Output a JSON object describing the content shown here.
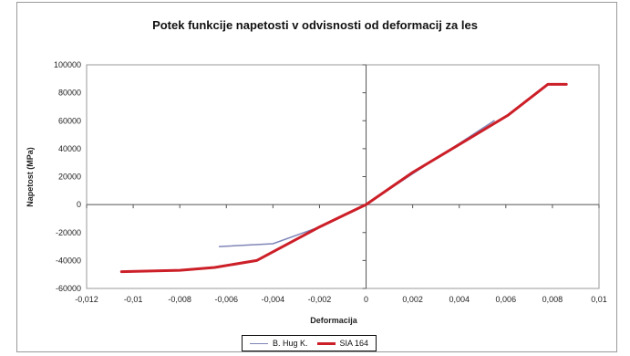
{
  "chart_data": {
    "type": "line",
    "title": "Potek funkcije napetosti v odvisnosti od deformacij za les",
    "xlabel": "Deformacija",
    "ylabel": "Napetost (MPa)",
    "xlim": [
      -0.012,
      0.01
    ],
    "ylim": [
      -60000,
      100000
    ],
    "x_ticks": [
      -0.012,
      -0.01,
      -0.008,
      -0.006,
      -0.004,
      -0.002,
      0,
      0.002,
      0.004,
      0.006,
      0.008,
      0.01
    ],
    "x_tick_labels": [
      "-0,012",
      "-0,01",
      "-0,008",
      "-0,006",
      "-0,004",
      "-0,002",
      "0",
      "0,002",
      "0,004",
      "0,006",
      "0,008",
      "0,01"
    ],
    "y_ticks": [
      -60000,
      -40000,
      -20000,
      0,
      20000,
      40000,
      60000,
      80000,
      100000
    ],
    "y_tick_labels": [
      "-60000",
      "-40000",
      "-20000",
      "0",
      "20000",
      "40000",
      "60000",
      "80000",
      "100000"
    ],
    "grid": false,
    "legend_position": "bottom",
    "series": [
      {
        "name": "B. Hug K.",
        "color": "#7f86b8",
        "x": [
          -0.0063,
          -0.004,
          -0.002,
          0,
          0.002,
          0.0055
        ],
        "y": [
          -30000,
          -28000,
          -16000,
          0,
          22000,
          60000
        ]
      },
      {
        "name": "SIA 164",
        "color": "#cc1f28",
        "x": [
          -0.0105,
          -0.008,
          -0.0065,
          -0.0047,
          -0.002,
          0,
          0.002,
          0.004,
          0.0061,
          0.0078,
          0.0086
        ],
        "y": [
          -48000,
          -47000,
          -45000,
          -40000,
          -16000,
          0,
          23000,
          43000,
          64000,
          86000,
          86000
        ]
      }
    ]
  }
}
